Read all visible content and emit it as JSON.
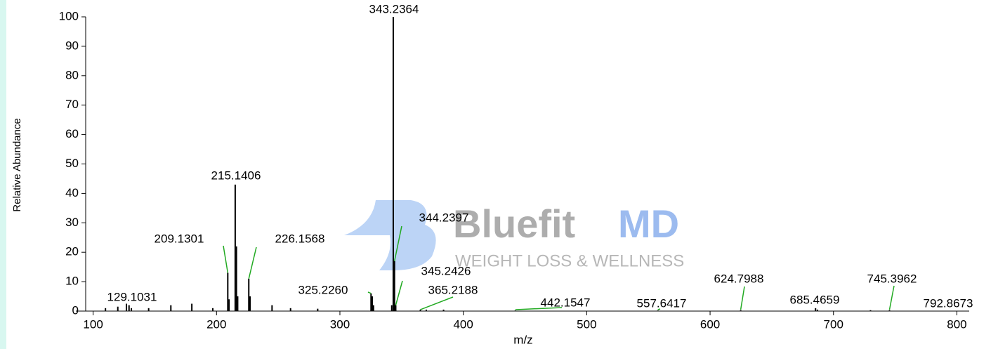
{
  "chart_data": {
    "type": "spectrum",
    "x_label": "m/z",
    "y_label": "Relative Abundance",
    "x": [
      129.1031,
      209.1301,
      215.1406,
      226.1568,
      325.226,
      343.2364,
      344.2397,
      345.2426,
      365.2188,
      442.1547,
      557.6417,
      624.7988,
      685.4659,
      745.3962,
      792.8673
    ],
    "values": [
      2,
      13,
      43,
      11,
      6,
      100,
      17,
      2,
      0.5,
      0.2,
      0.2,
      0.3,
      1,
      0.3,
      0.1
    ],
    "value_labels": [
      "129.1031",
      "209.1301",
      "215.1406",
      "226.1568",
      "325.2260",
      "343.2364",
      "344.2397",
      "345.2426",
      "365.2188",
      "442.1547",
      "557.6417",
      "624.7988",
      "685.4659",
      "745.3962",
      "792.8673"
    ],
    "minor_peaks": {
      "x": [
        110,
        120,
        127,
        131,
        145,
        163,
        180,
        197,
        210.13,
        216.14,
        217.15,
        227.16,
        245,
        260,
        282,
        326.23,
        327.23,
        342,
        370,
        384,
        687,
        730
      ],
      "values": [
        1,
        1.5,
        2.5,
        1,
        1,
        2,
        2.5,
        1,
        4,
        22,
        5,
        5,
        2,
        1,
        0.8,
        5,
        2,
        2,
        0.5,
        0.5,
        0.5,
        0.3
      ]
    },
    "color": "#000000",
    "label_line_color": "#22aa22",
    "xlim": [
      86,
      810
    ],
    "xticks": [
      100,
      200,
      300,
      400,
      500,
      600,
      700,
      800
    ],
    "ylim": [
      0,
      100
    ],
    "yticks": [
      0,
      10,
      20,
      30,
      40,
      50,
      60,
      70,
      80,
      90,
      100
    ]
  },
  "watermark": {
    "brand_a": "Bluefit",
    "brand_b": "MD",
    "tagline": "WEIGHT LOSS & WELLNESS"
  }
}
